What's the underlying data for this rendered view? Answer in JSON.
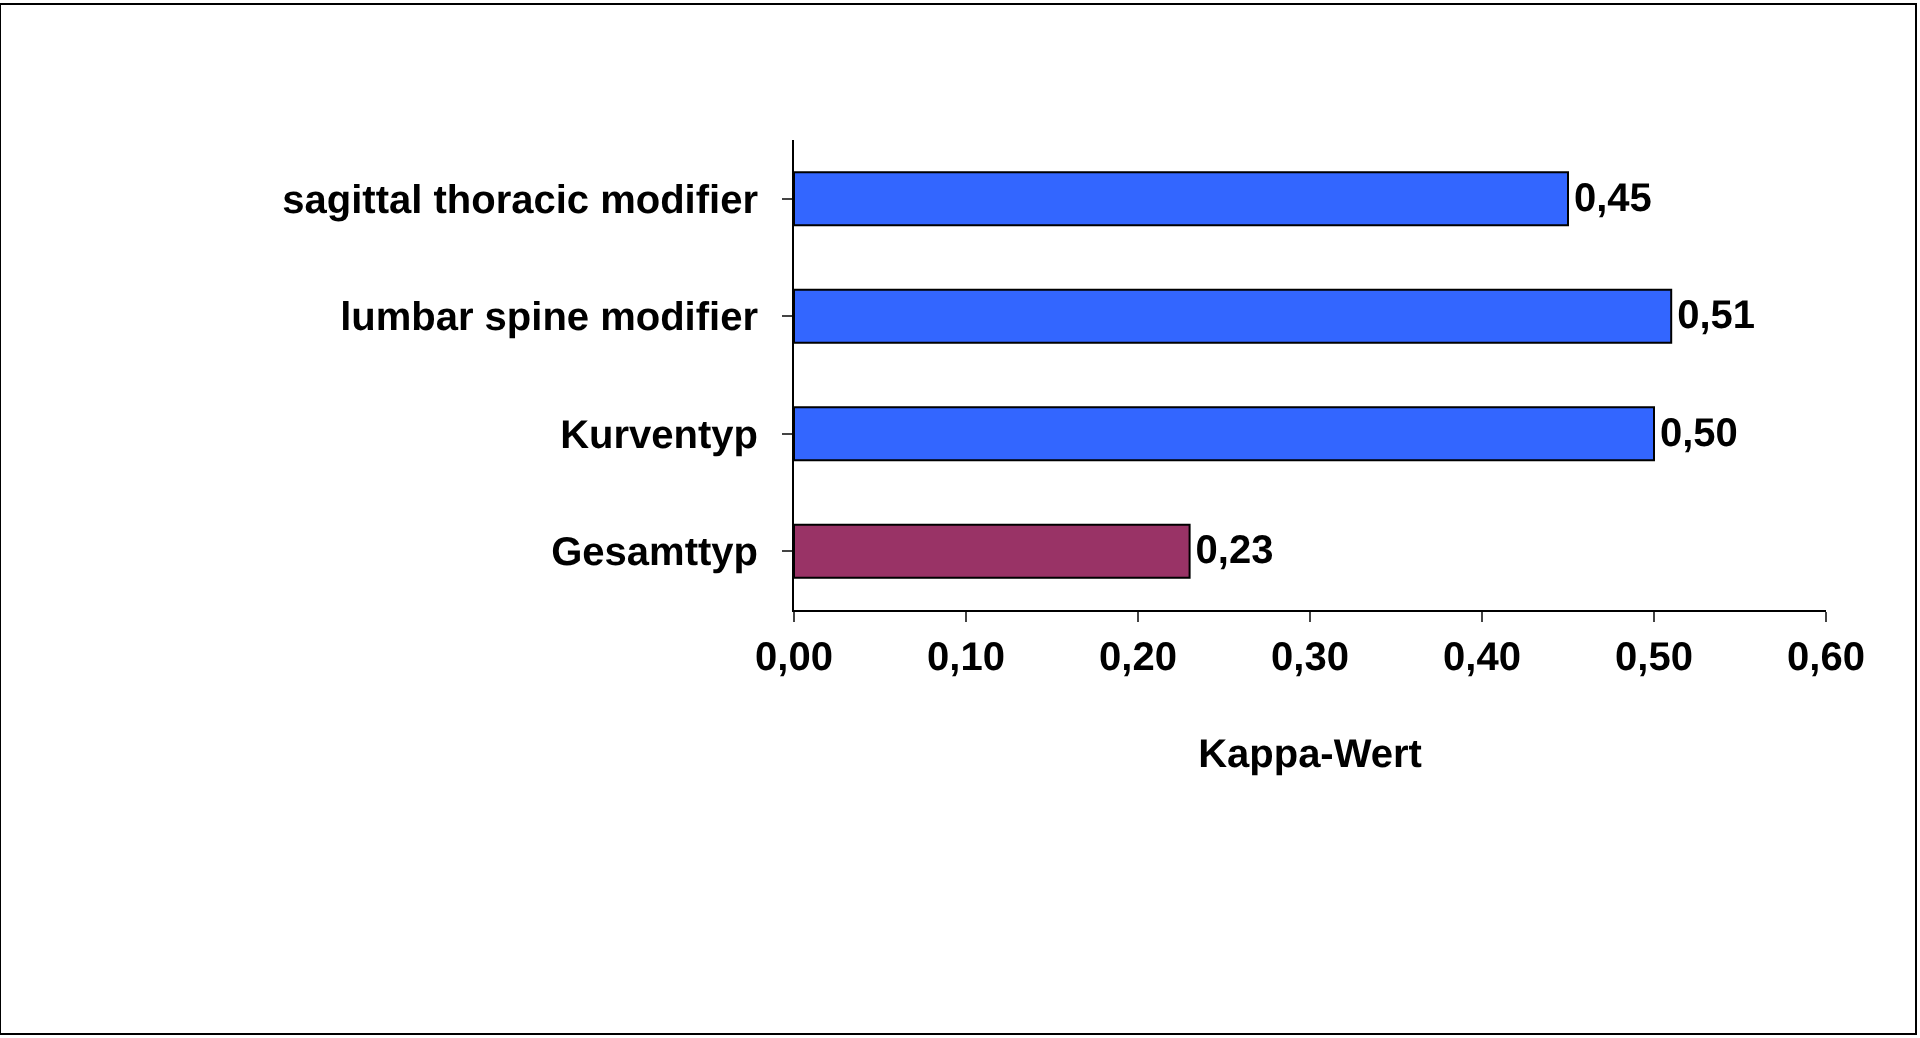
{
  "chart_data": {
    "type": "bar",
    "orientation": "horizontal",
    "xlabel": "Kappa-Wert",
    "categories": [
      "sagittal thoracic modifier",
      "lumbar spine modifier",
      "Kurventyp",
      "Gesamttyp"
    ],
    "values": [
      0.45,
      0.51,
      0.5,
      0.23
    ],
    "colors": [
      "#3366ff",
      "#3366ff",
      "#3366ff",
      "#993366"
    ],
    "value_labels": [
      "0,45",
      "0,51",
      "0,50",
      "0,23"
    ],
    "xlim": [
      0,
      0.6
    ],
    "xticks": [
      {
        "value": 0,
        "label": "0,00"
      },
      {
        "value": 0.1,
        "label": "0,10"
      },
      {
        "value": 0.2,
        "label": "0,20"
      },
      {
        "value": 0.3,
        "label": "0,30"
      },
      {
        "value": 0.4,
        "label": "0,40"
      },
      {
        "value": 0.5,
        "label": "0,50"
      },
      {
        "value": 0.6,
        "label": "0,60"
      }
    ],
    "data_labels": false
  }
}
